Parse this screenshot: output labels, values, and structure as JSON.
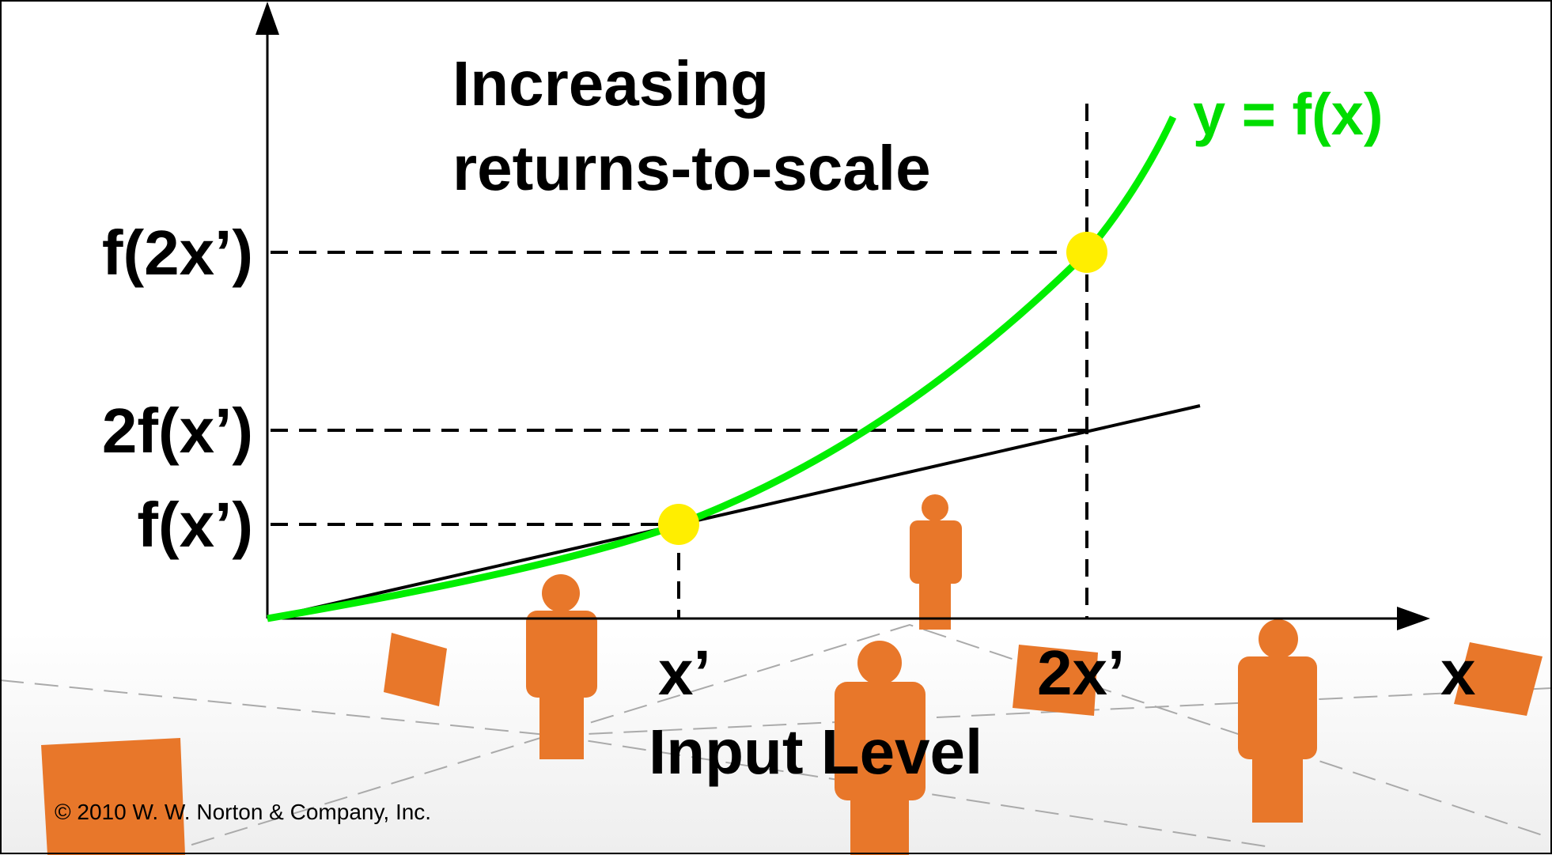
{
  "title": {
    "line1": "Increasing",
    "line2": "returns-to-scale"
  },
  "curve_label": "y = f(x)",
  "y_labels": [
    "f(2x’)",
    "2f(x’)",
    "f(x’)"
  ],
  "x_labels": [
    "x’",
    "2x’",
    "x"
  ],
  "x_axis_title": "Input Level",
  "copyright": "© 2010 W. W. Norton & Company, Inc."
}
